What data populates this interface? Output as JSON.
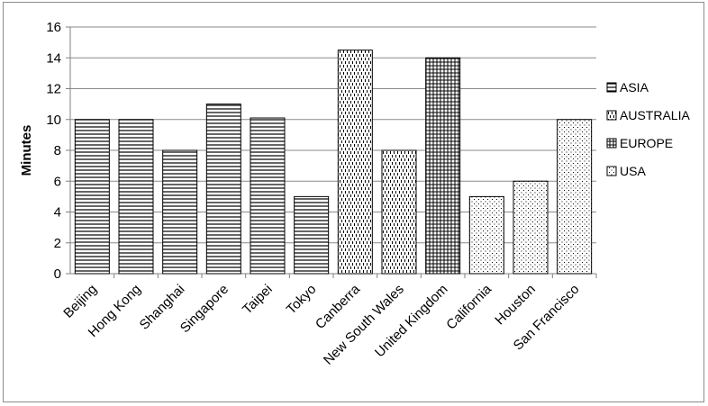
{
  "chart_data": {
    "type": "bar",
    "title": "",
    "xlabel": "",
    "ylabel": "Minutes",
    "ylim": [
      0,
      16
    ],
    "yticks": [
      0,
      2,
      4,
      6,
      8,
      10,
      12,
      14,
      16
    ],
    "grid": true,
    "legend_position": "right",
    "categories": [
      "Beijing",
      "Hong Kong",
      "Shanghai",
      "Singapore",
      "Taipei",
      "Tokyo",
      "Canberra",
      "New South Wales",
      "United Kingdom",
      "California",
      "Houston",
      "San Francisco"
    ],
    "values": [
      10,
      10,
      8,
      11,
      10.1,
      5,
      14.5,
      8,
      14,
      5,
      6,
      10
    ],
    "groups": [
      "ASIA",
      "ASIA",
      "ASIA",
      "ASIA",
      "ASIA",
      "ASIA",
      "AUSTRALIA",
      "AUSTRALIA",
      "EUROPE",
      "USA",
      "USA",
      "USA"
    ],
    "series": [
      {
        "name": "ASIA",
        "pattern": "horizontal-lines"
      },
      {
        "name": "AUSTRALIA",
        "pattern": "vertical-dashes"
      },
      {
        "name": "EUROPE",
        "pattern": "grid"
      },
      {
        "name": "USA",
        "pattern": "dots"
      }
    ]
  }
}
